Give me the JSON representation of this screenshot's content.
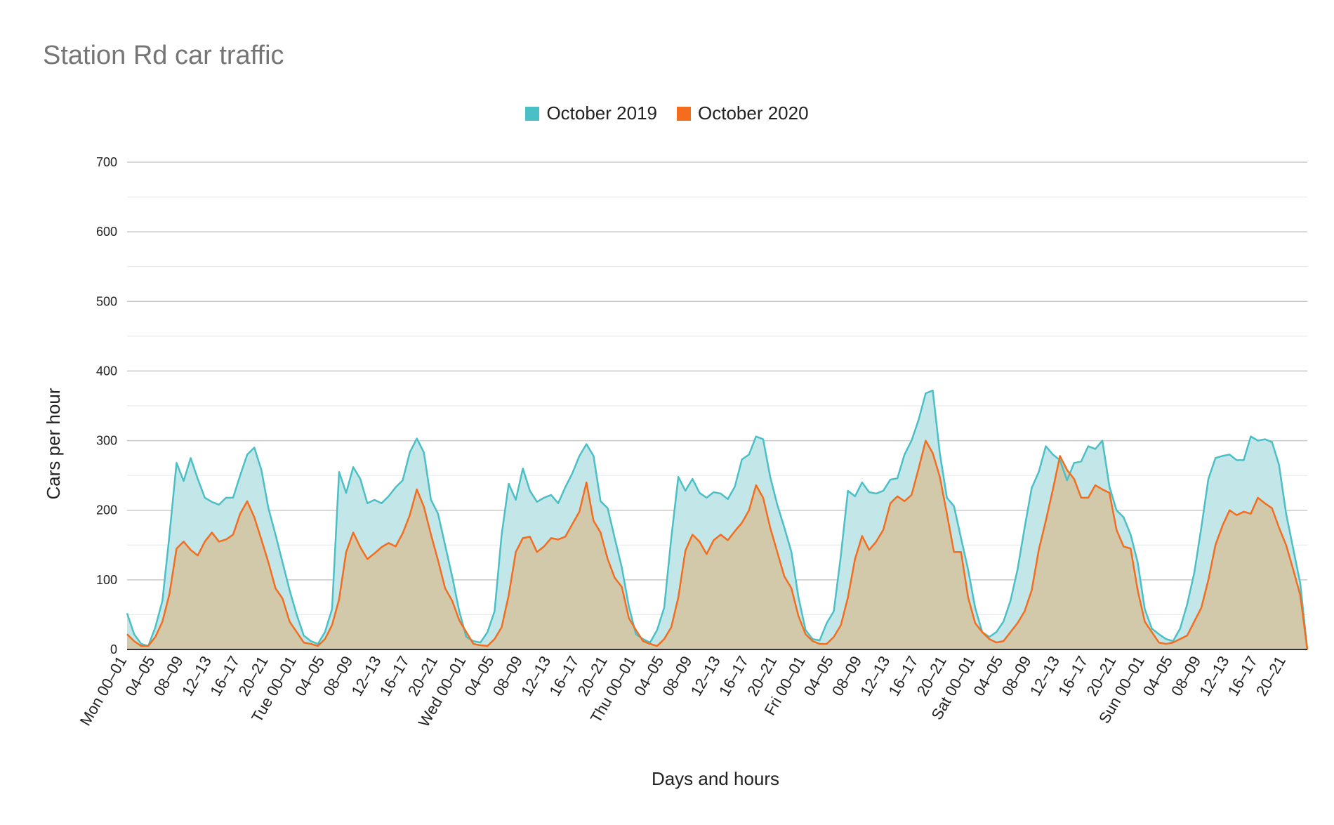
{
  "chart_data": {
    "type": "area",
    "title": "Station Rd car traffic",
    "xlabel": "Days and hours",
    "ylabel": "Cars per hour",
    "ylim": [
      0,
      700
    ],
    "yticks": [
      0,
      100,
      200,
      300,
      400,
      500,
      600,
      700
    ],
    "grid": true,
    "legend_position": "top",
    "x_tick_labels": [
      "Mon 00–01",
      "04–05",
      "08–09",
      "12–13",
      "16–17",
      "20–21",
      "Tue 00–01",
      "04–05",
      "08–09",
      "12–13",
      "16–17",
      "20–21",
      "Wed 00–01",
      "04–05",
      "08–09",
      "12–13",
      "16–17",
      "20–21",
      "Thu 00–01",
      "04–05",
      "08–09",
      "12–13",
      "16–17",
      "20–21",
      "Fri 00–01",
      "04–05",
      "08–09",
      "12–13",
      "16–17",
      "20–21",
      "Sat 00–01",
      "04–05",
      "08–09",
      "12–13",
      "16–17",
      "20–21",
      "Sun 00–01",
      "04–05",
      "08–09",
      "12–13",
      "16–17",
      "20–21"
    ],
    "series": [
      {
        "name": "October 2019",
        "color": "#4bbfc6",
        "fill": "#c3e7e9",
        "values": [
          52,
          22,
          8,
          5,
          32,
          70,
          165,
          268,
          242,
          275,
          245,
          218,
          212,
          208,
          218,
          218,
          250,
          280,
          290,
          258,
          203,
          165,
          125,
          85,
          50,
          20,
          12,
          8,
          25,
          58,
          255,
          225,
          262,
          245,
          210,
          215,
          210,
          220,
          233,
          243,
          283,
          303,
          283,
          215,
          195,
          150,
          105,
          55,
          18,
          12,
          10,
          25,
          55,
          165,
          238,
          215,
          260,
          228,
          212,
          218,
          222,
          210,
          233,
          253,
          278,
          295,
          278,
          213,
          203,
          160,
          118,
          62,
          22,
          15,
          10,
          28,
          60,
          160,
          248,
          228,
          245,
          225,
          218,
          226,
          224,
          216,
          234,
          273,
          280,
          306,
          302,
          248,
          208,
          175,
          140,
          75,
          28,
          15,
          13,
          38,
          55,
          135,
          228,
          220,
          240,
          226,
          224,
          228,
          244,
          246,
          280,
          300,
          330,
          368,
          372,
          282,
          218,
          206,
          160,
          115,
          60,
          25,
          18,
          25,
          40,
          70,
          115,
          175,
          232,
          255,
          292,
          280,
          272,
          243,
          268,
          270,
          292,
          288,
          300,
          234,
          200,
          190,
          165,
          125,
          58,
          30,
          22,
          15,
          12,
          30,
          65,
          110,
          175,
          245,
          275,
          278,
          280,
          272,
          272,
          306,
          300,
          302,
          298,
          265,
          195,
          145,
          95,
          0
        ]
      },
      {
        "name": "October 2020",
        "color": "#f46d1f",
        "fill": "#d5c3a0",
        "values": [
          22,
          12,
          5,
          5,
          18,
          40,
          80,
          145,
          155,
          143,
          135,
          155,
          168,
          155,
          158,
          165,
          195,
          213,
          190,
          158,
          125,
          88,
          73,
          40,
          25,
          10,
          8,
          5,
          15,
          35,
          72,
          140,
          168,
          147,
          130,
          138,
          147,
          153,
          148,
          167,
          193,
          230,
          205,
          165,
          128,
          88,
          70,
          42,
          25,
          8,
          6,
          5,
          15,
          32,
          78,
          140,
          160,
          162,
          140,
          148,
          160,
          158,
          162,
          180,
          198,
          240,
          185,
          168,
          130,
          103,
          90,
          45,
          28,
          12,
          8,
          5,
          15,
          32,
          75,
          142,
          165,
          155,
          137,
          157,
          165,
          157,
          170,
          182,
          200,
          236,
          218,
          175,
          140,
          105,
          88,
          48,
          22,
          12,
          8,
          8,
          18,
          35,
          75,
          130,
          163,
          143,
          155,
          172,
          210,
          220,
          213,
          222,
          260,
          300,
          282,
          248,
          195,
          140,
          140,
          75,
          38,
          25,
          15,
          10,
          12,
          25,
          38,
          55,
          85,
          143,
          185,
          230,
          278,
          258,
          245,
          218,
          218,
          236,
          230,
          225,
          172,
          148,
          145,
          85,
          40,
          25,
          10,
          8,
          10,
          15,
          20,
          40,
          60,
          100,
          150,
          178,
          200,
          193,
          198,
          195,
          218,
          210,
          203,
          175,
          150,
          115,
          78,
          0
        ]
      }
    ]
  }
}
